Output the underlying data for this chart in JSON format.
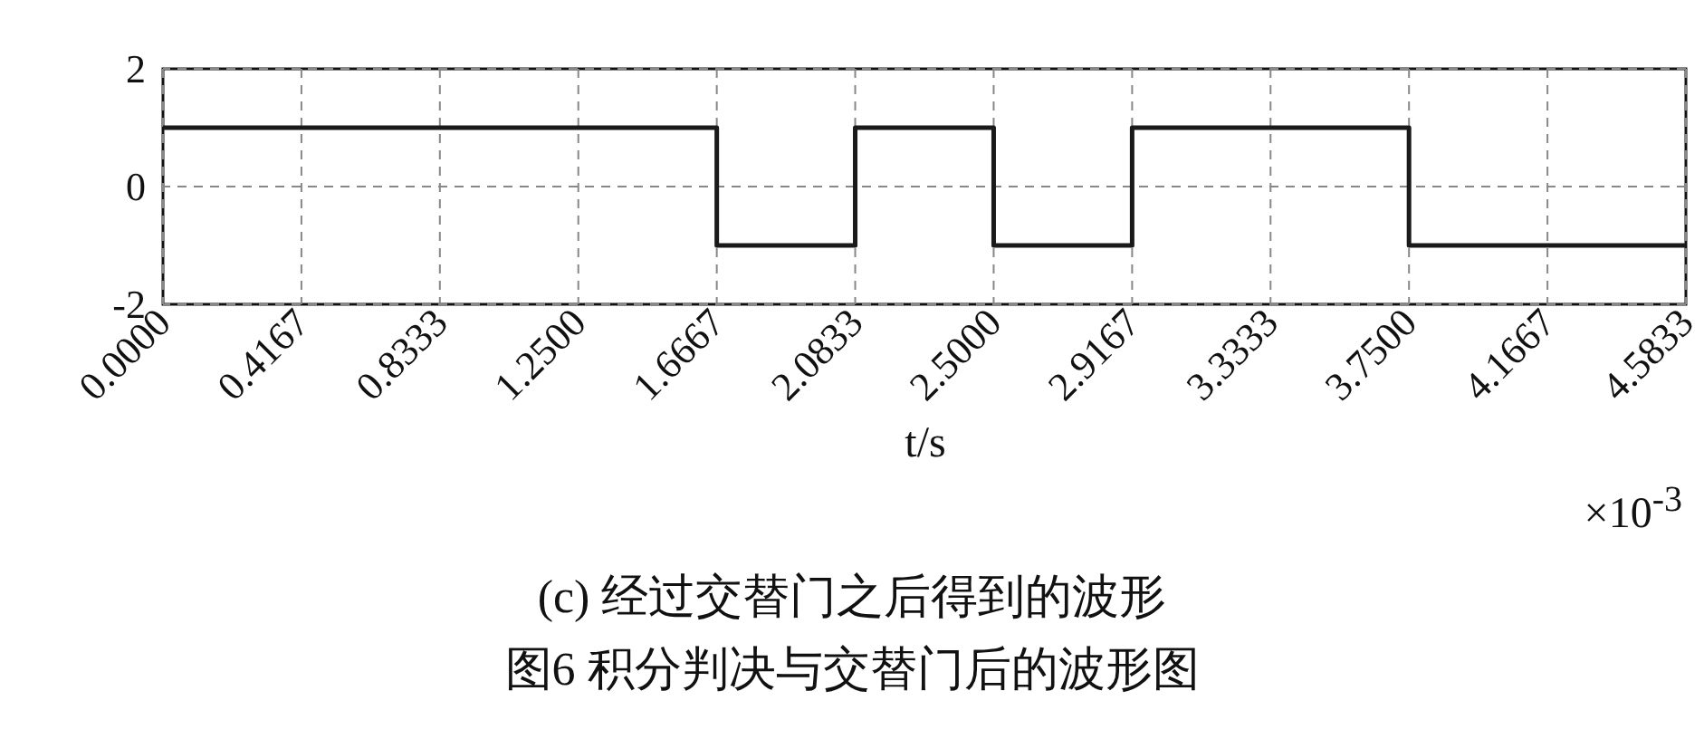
{
  "chart_data": {
    "type": "step",
    "xlabel": "t/s",
    "x": [
      0,
      1.6667,
      2.0833,
      2.5,
      2.9167,
      3.75,
      4.5833
    ],
    "series": [
      {
        "color": "#1a1a1a",
        "values": [
          1,
          -1,
          1,
          -1,
          1,
          -1,
          -1
        ]
      }
    ],
    "xlim": [
      0,
      4.5833
    ],
    "xticks": [
      {
        "value": 0,
        "label": "0.0000"
      },
      {
        "value": 0.4167,
        "label": "0.4167"
      },
      {
        "value": 0.8333,
        "label": "0.8333"
      },
      {
        "value": 1.25,
        "label": "1.2500"
      },
      {
        "value": 1.6667,
        "label": "1.6667"
      },
      {
        "value": 2.0833,
        "label": "2.0833"
      },
      {
        "value": 2.5,
        "label": "2.5000"
      },
      {
        "value": 2.9167,
        "label": "2.9167"
      },
      {
        "value": 3.3333,
        "label": "3.3333"
      },
      {
        "value": 3.75,
        "label": "3.7500"
      },
      {
        "value": 4.1667,
        "label": "4.1667"
      },
      {
        "value": 4.5833,
        "label": "4.5833"
      }
    ],
    "ylim": [
      -2,
      2
    ],
    "yticks": [
      -2,
      0,
      2
    ],
    "grid": true,
    "line_style": "solid",
    "marker": "none",
    "annotations": [
      "×10$^{-3}$",
      "(c) 经过交替门之后得到的波形",
      "图6  积分判决与交替门后的波形图"
    ]
  }
}
